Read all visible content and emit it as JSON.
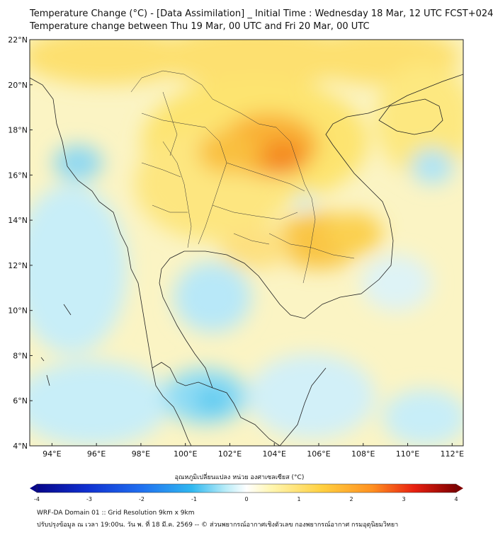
{
  "header": {
    "title_line1": "Temperature Change (°C) - [Data Assimilation] _ Initial Time : Wednesday 18 Mar, 12 UTC FCST+024",
    "title_line2": "Temperature change between Thu 19 Mar, 00 UTC and Fri 20 Mar, 00 UTC"
  },
  "map": {
    "lat_labels": [
      "22°N",
      "20°N",
      "18°N",
      "16°N",
      "14°N",
      "12°N",
      "10°N",
      "8°N",
      "6°N",
      "4°N"
    ],
    "lon_labels": [
      "94°E",
      "96°E",
      "98°E",
      "100°E",
      "102°E",
      "104°E",
      "106°E",
      "108°E",
      "110°E",
      "112°E"
    ],
    "lat_range": [
      4,
      22
    ],
    "lon_range": [
      93,
      112.5
    ]
  },
  "colorbar": {
    "label": "อุณหภูมิเปลี่ยนแปลง หน่วย องศาเซลเซียส (°C)",
    "tick_labels": [
      "-4",
      "-3",
      "-2",
      "-1",
      "0",
      "1",
      "2",
      "3",
      "4"
    ],
    "range": [
      -4,
      4
    ],
    "colors": [
      "#06068a",
      "#1030d0",
      "#2070f0",
      "#30b8f0",
      "#b8ecf8",
      "#ffffff",
      "#fff6b0",
      "#ffd040",
      "#ff9020",
      "#e82010",
      "#800000"
    ]
  },
  "footer": {
    "line1": "WRF-DA Domain 01 :: Grid Resolution 9km x 9km",
    "line2": "ปรับปรุงข้อมูล ณ เวลา 19:00น. วัน พ. ที่ 18 มี.ค. 2569 -- © ส่วนพยากรณ์อากาศเชิงตัวเลข กองพยากรณ์อากาศ กรมอุตุนิยมวิทยา"
  }
}
